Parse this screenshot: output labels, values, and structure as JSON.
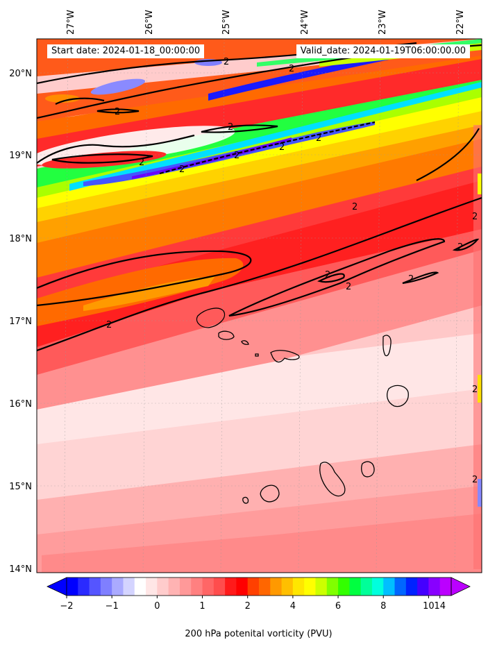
{
  "header": {
    "start_date": "Start date: 2024-01-18_00:00:00",
    "valid_date": "Valid_date: 2024-01-19T06:00:00.00"
  },
  "axes": {
    "lon_labels": [
      "27°W",
      "26°W",
      "25°W",
      "24°W",
      "23°W",
      "22°W"
    ],
    "lat_labels": [
      "20°N",
      "19°N",
      "18°N",
      "17°N",
      "16°N",
      "15°N",
      "14°N"
    ]
  },
  "contour_label": "2",
  "colorbar": {
    "title": "200 hPa potenital vorticity (PVU)",
    "tick_labels": [
      "−2",
      "−1",
      "0",
      "1",
      "2",
      "4",
      "6",
      "8",
      "10",
      "14"
    ],
    "colors": [
      "#0000ff",
      "#2a2aff",
      "#5555ff",
      "#7f7fff",
      "#aaaaff",
      "#d4d4ff",
      "#ffffff",
      "#ffe6e6",
      "#ffcccc",
      "#ffb3b3",
      "#ff9999",
      "#ff8080",
      "#ff6666",
      "#ff4d4d",
      "#ff1a1a",
      "#ff0000",
      "#ff4000",
      "#ff6600",
      "#ff9900",
      "#ffbf00",
      "#ffe600",
      "#ffff00",
      "#ccff00",
      "#80ff00",
      "#33ff00",
      "#00ff40",
      "#00ff99",
      "#00ffdd",
      "#00bfff",
      "#0066ff",
      "#0022ff",
      "#4400ff",
      "#8800ff",
      "#bb00ff"
    ]
  }
}
